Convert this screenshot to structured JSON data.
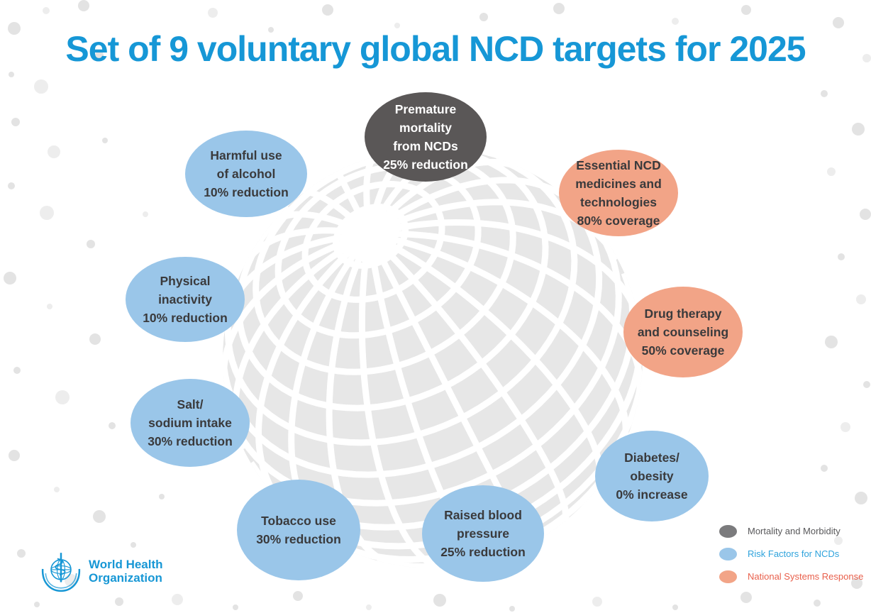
{
  "title": "Set of 9 voluntary global NCD targets for 2025",
  "palette": {
    "title_blue": "#1697D6",
    "mortality_fill": "#5A5757",
    "risk_fill": "#9AC6E9",
    "response_fill": "#F2A487",
    "globe_gray": "#E7E7E7",
    "dot_gray": "#E3E3E3",
    "legend_mortality_swatch": "#7B7B7D",
    "legend_mortality_text": "#58585A",
    "legend_risk_text": "#2FA3DC",
    "legend_response_text": "#E9604C",
    "who_blue": "#1797D5"
  },
  "bubbles": [
    {
      "id": "premature-mortality",
      "category": "mortality",
      "lines": [
        "Premature",
        "mortality",
        "from NCDs",
        "25% reduction"
      ]
    },
    {
      "id": "harmful-alcohol",
      "category": "risk",
      "lines": [
        "Harmful use",
        "of alcohol",
        "10% reduction"
      ]
    },
    {
      "id": "essential-medicines",
      "category": "response",
      "lines": [
        "Essential NCD",
        "medicines and",
        "technologies",
        "80% coverage"
      ]
    },
    {
      "id": "physical-inactivity",
      "category": "risk",
      "lines": [
        "Physical",
        "inactivity",
        "10% reduction"
      ]
    },
    {
      "id": "drug-therapy",
      "category": "response",
      "lines": [
        "Drug therapy",
        "and counseling",
        "50% coverage"
      ]
    },
    {
      "id": "salt-sodium",
      "category": "risk",
      "lines": [
        "Salt/",
        "sodium intake",
        "30% reduction"
      ]
    },
    {
      "id": "diabetes-obesity",
      "category": "risk",
      "lines": [
        "Diabetes/",
        "obesity",
        "0% increase"
      ]
    },
    {
      "id": "tobacco-use",
      "category": "risk",
      "lines": [
        "Tobacco use",
        "30% reduction"
      ]
    },
    {
      "id": "raised-blood-pressure",
      "category": "risk",
      "lines": [
        "Raised blood",
        "pressure",
        "25% reduction"
      ]
    }
  ],
  "legend": {
    "items": [
      {
        "label": "Mortality and Morbidity",
        "category": "mortality"
      },
      {
        "label": "Risk Factors for NCDs",
        "category": "risk"
      },
      {
        "label": "National Systems Response",
        "category": "response"
      }
    ]
  },
  "logo": {
    "line1": "World Health",
    "line2": "Organization"
  }
}
